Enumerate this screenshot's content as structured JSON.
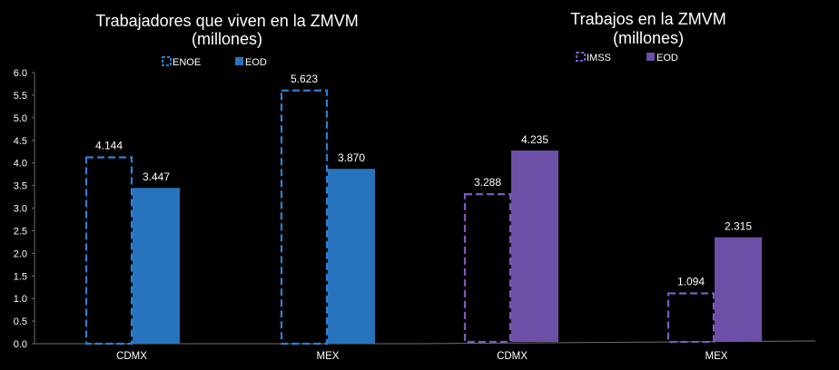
{
  "chart_data": [
    {
      "type": "bar",
      "title_line1": "Trabajadores que viven  en la ZMVM",
      "title_line2": "(millones)",
      "categories": [
        "CDMX",
        "MEX"
      ],
      "series": [
        {
          "name": "ENOE",
          "values": [
            4.144,
            5.623
          ],
          "labels": [
            "4.144",
            "5.623"
          ],
          "style": "dashed",
          "color": "#2f7fd0"
        },
        {
          "name": "EOD",
          "values": [
            3.447,
            3.87
          ],
          "labels": [
            "3.447",
            "3.870"
          ],
          "style": "solid",
          "color": "#2773bd"
        }
      ],
      "ylim": [
        0,
        6.0
      ],
      "yticks": [
        "0.0",
        "0.5",
        "1.0",
        "1.5",
        "2.0",
        "2.5",
        "3.0",
        "3.5",
        "4.0",
        "4.5",
        "5.0",
        "5.5",
        "6.0"
      ],
      "legend_position": "top-center"
    },
    {
      "type": "bar",
      "title_line1": "Trabajos en la ZMVM",
      "title_line2": "(millones)",
      "categories": [
        "CDMX",
        "MEX"
      ],
      "series": [
        {
          "name": "IMSS",
          "values": [
            3.288,
            1.094
          ],
          "labels": [
            "3.288",
            "1.094"
          ],
          "style": "dashed",
          "color": "#7b5cb8"
        },
        {
          "name": "EOD",
          "values": [
            4.235,
            2.315
          ],
          "labels": [
            "4.235",
            "2.315"
          ],
          "style": "solid",
          "color": "#6c4fa6"
        }
      ],
      "ylim": [
        0,
        6.0
      ],
      "legend_position": "top-center"
    }
  ]
}
